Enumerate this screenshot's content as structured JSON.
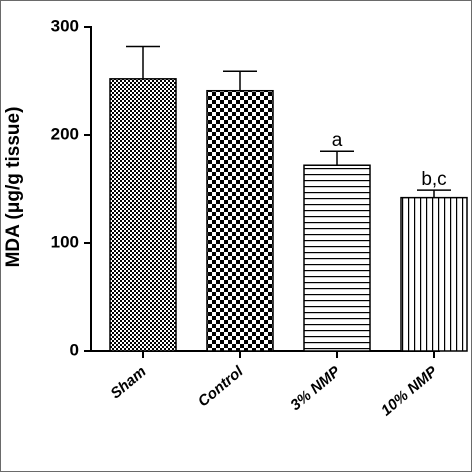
{
  "chart_data": {
    "type": "bar",
    "title": "",
    "xlabel": "",
    "ylabel": "MDA (μg/g tissue)",
    "ylim": [
      0,
      300
    ],
    "yticks": [
      0,
      100,
      200,
      300
    ],
    "categories": [
      "Sham",
      "Control",
      "3% NMP",
      "10% NMP"
    ],
    "values": [
      252,
      241,
      172,
      142
    ],
    "errors": [
      30,
      18,
      13,
      7
    ],
    "annotations": [
      "",
      "",
      "a",
      "b,c"
    ],
    "patterns": [
      "checker-fine",
      "checker-coarse",
      "horizontal-lines",
      "vertical-lines"
    ],
    "colors": {
      "ink": "#000000",
      "background": "#ffffff"
    }
  }
}
